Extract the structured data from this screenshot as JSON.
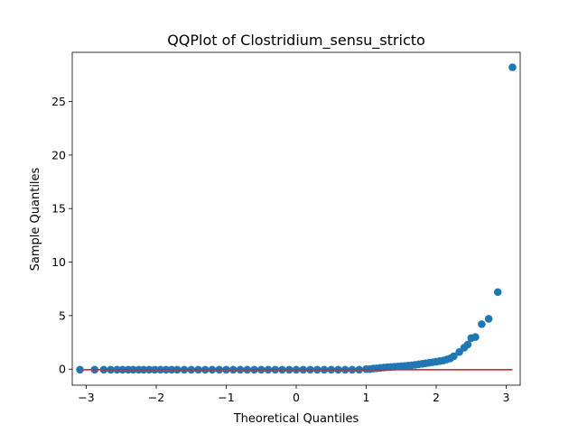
{
  "chart_data": {
    "type": "scatter",
    "title": "QQPlot of Clostridium_sensu_stricto",
    "xlabel": "Theoretical Quantiles",
    "ylabel": "Sample Quantiles",
    "xlim": [
      -3.2,
      3.2
    ],
    "ylim": [
      -1.5,
      29.6
    ],
    "xticks": [
      -3,
      -2,
      -1,
      0,
      1,
      2,
      3
    ],
    "yticks": [
      0,
      5,
      10,
      15,
      20,
      25
    ],
    "grid": false,
    "colors": {
      "points": "#1f77b4",
      "reference_line": "#d62728"
    },
    "reference_line": {
      "x": [
        -3.09,
        3.09
      ],
      "y": [
        -0.05,
        -0.05
      ]
    },
    "series": [
      {
        "x": [
          -3.09,
          -2.88,
          -2.75,
          -2.65,
          -2.56,
          -2.48,
          -2.4,
          -2.33,
          -2.25,
          -2.18,
          -2.1,
          -2.02,
          -1.94,
          -1.86,
          -1.78,
          -1.7,
          -1.6,
          -1.5,
          -1.4,
          -1.3,
          -1.2,
          -1.1,
          -1.0,
          -0.9,
          -0.8,
          -0.7,
          -0.6,
          -0.5,
          -0.4,
          -0.3,
          -0.2,
          -0.1,
          0.0,
          0.1,
          0.2,
          0.3,
          0.4,
          0.5,
          0.6,
          0.7,
          0.8,
          0.9,
          1.0,
          1.05,
          1.1,
          1.15,
          1.2,
          1.25,
          1.3,
          1.35,
          1.4,
          1.45,
          1.5,
          1.55,
          1.6,
          1.65,
          1.7,
          1.75,
          1.8,
          1.85,
          1.9,
          1.95,
          2.0,
          2.05,
          2.1,
          2.15,
          2.2,
          2.25,
          2.33,
          2.4,
          2.45,
          2.5,
          2.56,
          2.65,
          2.75,
          2.88,
          3.09
        ],
        "y": [
          -0.05,
          -0.05,
          -0.05,
          -0.05,
          -0.05,
          -0.05,
          -0.05,
          -0.05,
          -0.05,
          -0.05,
          -0.05,
          -0.05,
          -0.05,
          -0.05,
          -0.05,
          -0.05,
          -0.05,
          -0.05,
          -0.05,
          -0.05,
          -0.05,
          -0.05,
          -0.05,
          -0.05,
          -0.05,
          -0.05,
          -0.05,
          -0.05,
          -0.05,
          -0.05,
          -0.05,
          -0.05,
          -0.05,
          -0.05,
          -0.05,
          -0.05,
          -0.05,
          -0.05,
          -0.05,
          -0.05,
          -0.05,
          -0.05,
          0.0,
          0.0,
          0.05,
          0.08,
          0.12,
          0.15,
          0.18,
          0.2,
          0.22,
          0.25,
          0.28,
          0.3,
          0.33,
          0.36,
          0.4,
          0.45,
          0.5,
          0.55,
          0.6,
          0.65,
          0.7,
          0.75,
          0.8,
          0.9,
          1.0,
          1.2,
          1.6,
          2.0,
          2.3,
          2.9,
          3.0,
          4.2,
          4.7,
          7.2,
          28.2
        ]
      }
    ]
  }
}
